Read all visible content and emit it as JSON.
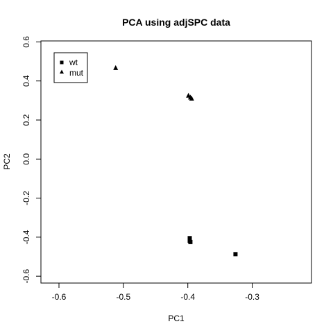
{
  "chart_data": {
    "type": "scatter",
    "title": "PCA using adjSPC data",
    "xlabel": "PC1",
    "ylabel": "PC2",
    "xlim": [
      -0.628,
      -0.208
    ],
    "ylim": [
      -0.635,
      0.605
    ],
    "xticks": [
      -0.6,
      -0.5,
      -0.4,
      -0.3
    ],
    "xtick_labels": [
      "-0.6",
      "-0.5",
      "-0.4",
      "-0.3"
    ],
    "yticks": [
      -0.6,
      -0.4,
      -0.2,
      0.0,
      0.2,
      0.4,
      0.6
    ],
    "ytick_labels": [
      "-0.6",
      "-0.4",
      "-0.2",
      "0.0",
      "0.2",
      "0.4",
      "0.6"
    ],
    "legend_position": "top-left",
    "grid": false,
    "series": [
      {
        "name": "wt",
        "marker": "square",
        "color": "#000000",
        "points": [
          {
            "x": -0.397,
            "y": -0.405
          },
          {
            "x": -0.397,
            "y": -0.418
          },
          {
            "x": -0.396,
            "y": -0.425
          },
          {
            "x": -0.326,
            "y": -0.487
          }
        ]
      },
      {
        "name": "mut",
        "marker": "triangle",
        "color": "#000000",
        "points": [
          {
            "x": -0.512,
            "y": 0.467
          },
          {
            "x": -0.399,
            "y": 0.325
          },
          {
            "x": -0.396,
            "y": 0.316
          },
          {
            "x": -0.394,
            "y": 0.31
          }
        ]
      }
    ]
  }
}
